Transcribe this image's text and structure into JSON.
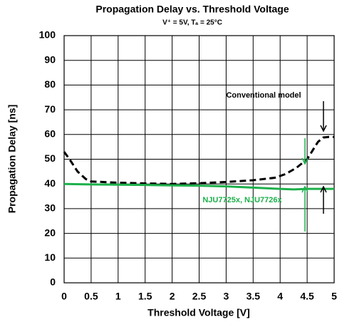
{
  "chart_data": {
    "type": "line",
    "title": "Propagation Delay vs. Threshold Voltage",
    "subtitle": "V⁺ = 5V, Tₐ = 25°C",
    "x_label": "Threshold Voltage [V]",
    "y_label": "Propagation Delay [ns]",
    "xlim": [
      0,
      5
    ],
    "ylim": [
      0,
      100
    ],
    "xticks": [
      0,
      0.5,
      1,
      1.5,
      2,
      2.5,
      3,
      3.5,
      4,
      4.5,
      5
    ],
    "yticks": [
      0,
      10,
      20,
      30,
      40,
      50,
      60,
      70,
      80,
      90,
      100
    ],
    "grid": true,
    "series": [
      {
        "name": "Conventional model",
        "color": "#000000",
        "dash": true,
        "x": [
          0,
          0.1,
          0.25,
          0.4,
          0.5,
          1,
          1.5,
          2,
          2.5,
          3,
          3.5,
          3.9,
          4.1,
          4.3,
          4.5,
          4.6,
          4.7,
          4.8,
          4.9,
          5
        ],
        "values": [
          53,
          50,
          45,
          42,
          41,
          40.5,
          40.2,
          40,
          40.3,
          40.8,
          41.5,
          42.5,
          44,
          46.5,
          50,
          53.5,
          57,
          58.8,
          59,
          59
        ]
      },
      {
        "name": "NJU7725x, NJU7726x",
        "color": "#1db04b",
        "dash": false,
        "x": [
          0,
          0.5,
          1,
          1.5,
          2,
          2.5,
          3,
          3.5,
          4,
          4.25,
          4.5,
          5
        ],
        "values": [
          40,
          39.8,
          39.7,
          39.6,
          39.4,
          39.3,
          39,
          38.5,
          38,
          37.8,
          38,
          38
        ]
      }
    ]
  }
}
